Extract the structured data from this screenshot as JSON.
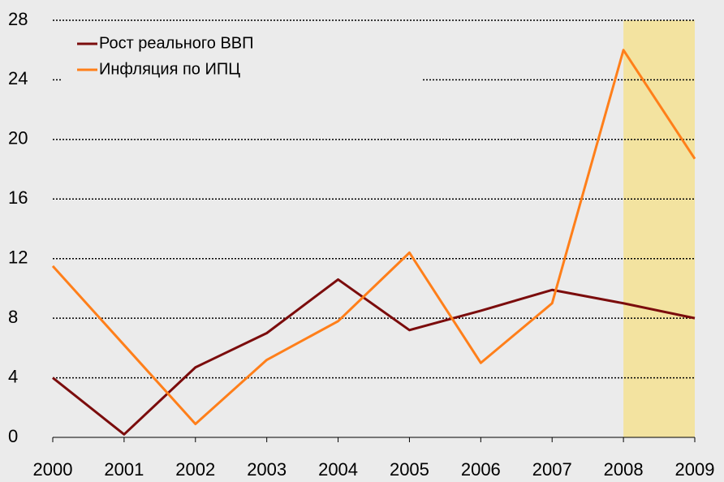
{
  "chart_data": {
    "type": "line",
    "categories": [
      "2000",
      "2001",
      "2002",
      "2003",
      "2004",
      "2005",
      "2006",
      "2007",
      "2008",
      "2009"
    ],
    "series": [
      {
        "name": "Рост реального ВВП",
        "color": "#7b0c0c",
        "values": [
          4.0,
          0.2,
          4.7,
          7.0,
          10.6,
          7.2,
          8.5,
          9.9,
          9.0,
          8.0
        ]
      },
      {
        "name": "Инфляция по ИПЦ",
        "color": "#ff7f1a",
        "values": [
          11.5,
          6.2,
          0.9,
          5.2,
          7.8,
          12.4,
          5.0,
          9.0,
          26.0,
          18.7
        ]
      }
    ],
    "ylim": [
      0,
      28
    ],
    "yticks": [
      0,
      4,
      8,
      12,
      16,
      20,
      24,
      28
    ],
    "grid": true,
    "highlight": [
      "2008",
      "2009"
    ],
    "highlight_color": "#f3e3a0",
    "legend": "upper left"
  }
}
